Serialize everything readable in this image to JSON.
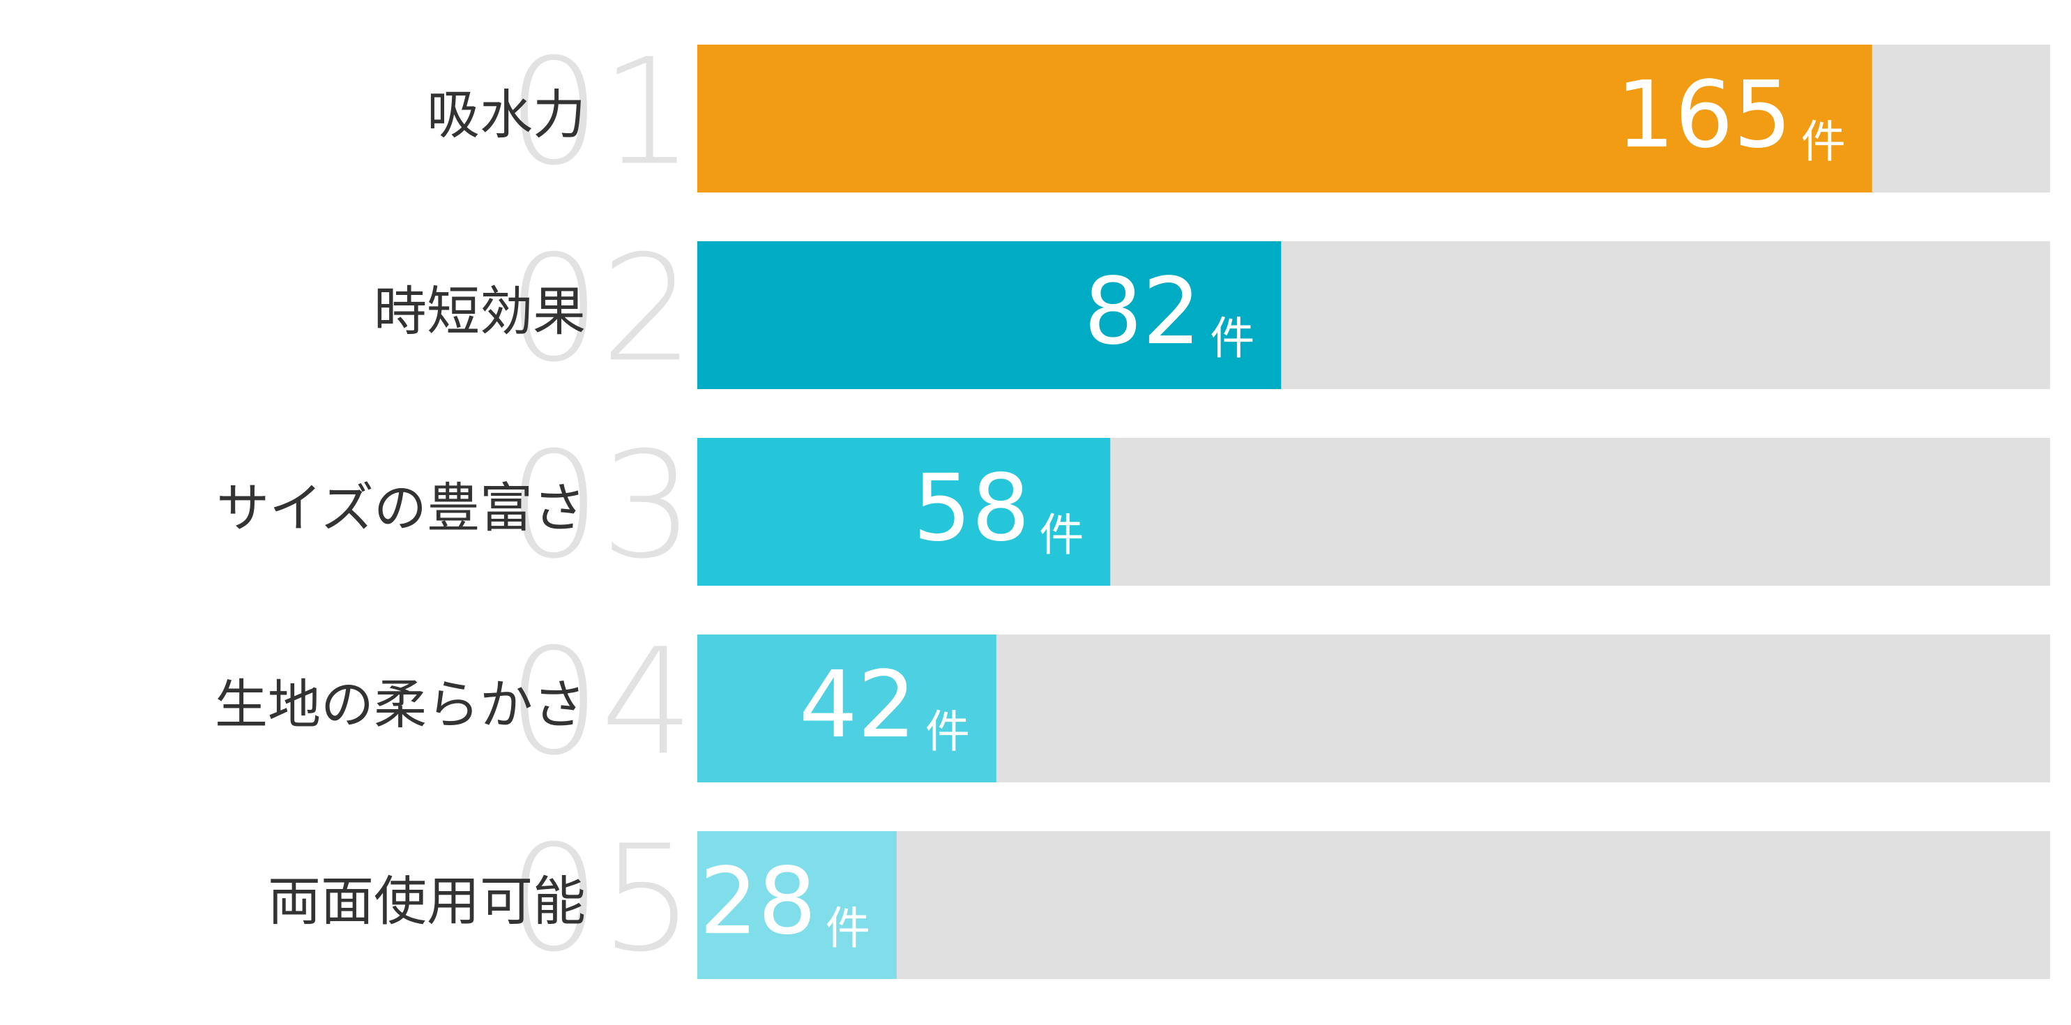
{
  "chart_data": {
    "type": "bar",
    "categories": [
      "吸水力",
      "時短効果",
      "サイズの豊富さ",
      "生地の柔らかさ",
      "両面使用可能"
    ],
    "ranks": [
      "01",
      "02",
      "03",
      "04",
      "05"
    ],
    "values": [
      165,
      82,
      58,
      42,
      28
    ],
    "unit": "件",
    "colors": [
      "#f29c14",
      "#00acc4",
      "#26c6da",
      "#4dd0e1",
      "#80deea"
    ],
    "track_color": "#e0e0e0",
    "xlim": [
      0,
      190
    ]
  }
}
